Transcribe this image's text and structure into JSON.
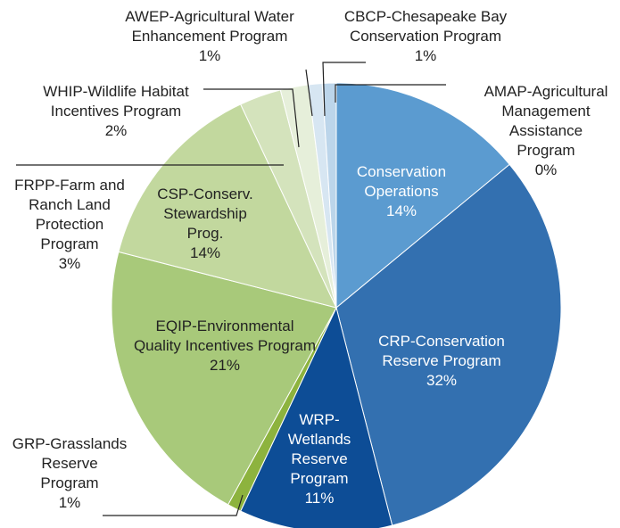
{
  "chart_data": {
    "type": "pie",
    "categories": [
      "AMAP-Agricultural Management Assistance Program",
      "Conservation Operations",
      "CRP-Conservation Reserve Program",
      "WRP-Wetlands Reserve Program",
      "GRP-Grasslands Reserve Program",
      "EQIP-Environmental Quality Incentives Program",
      "CSP-Conserv. Stewardship Prog.",
      "FRPP-Farm and Ranch Land Protection Program",
      "WHIP-Wildlife Habitat Incentives Program",
      "AWEP-Agricultural Water Enhancement Program",
      "CBCP-Chesapeake Bay Conservation Program"
    ],
    "values": [
      0,
      14,
      32,
      11,
      1,
      21,
      14,
      3,
      2,
      1,
      1
    ],
    "value_labels": [
      "0%",
      "14%",
      "32%",
      "11%",
      "1%",
      "21%",
      "14%",
      "3%",
      "2%",
      "1%",
      "1%"
    ],
    "colors": [
      "#9dbfde",
      "#5b9bd0",
      "#3370b0",
      "#0d4d96",
      "#8db33e",
      "#a8c97a",
      "#c2d89e",
      "#d4e3bc",
      "#e6efda",
      "#d7e6f2",
      "#bcd5ea"
    ]
  }
}
